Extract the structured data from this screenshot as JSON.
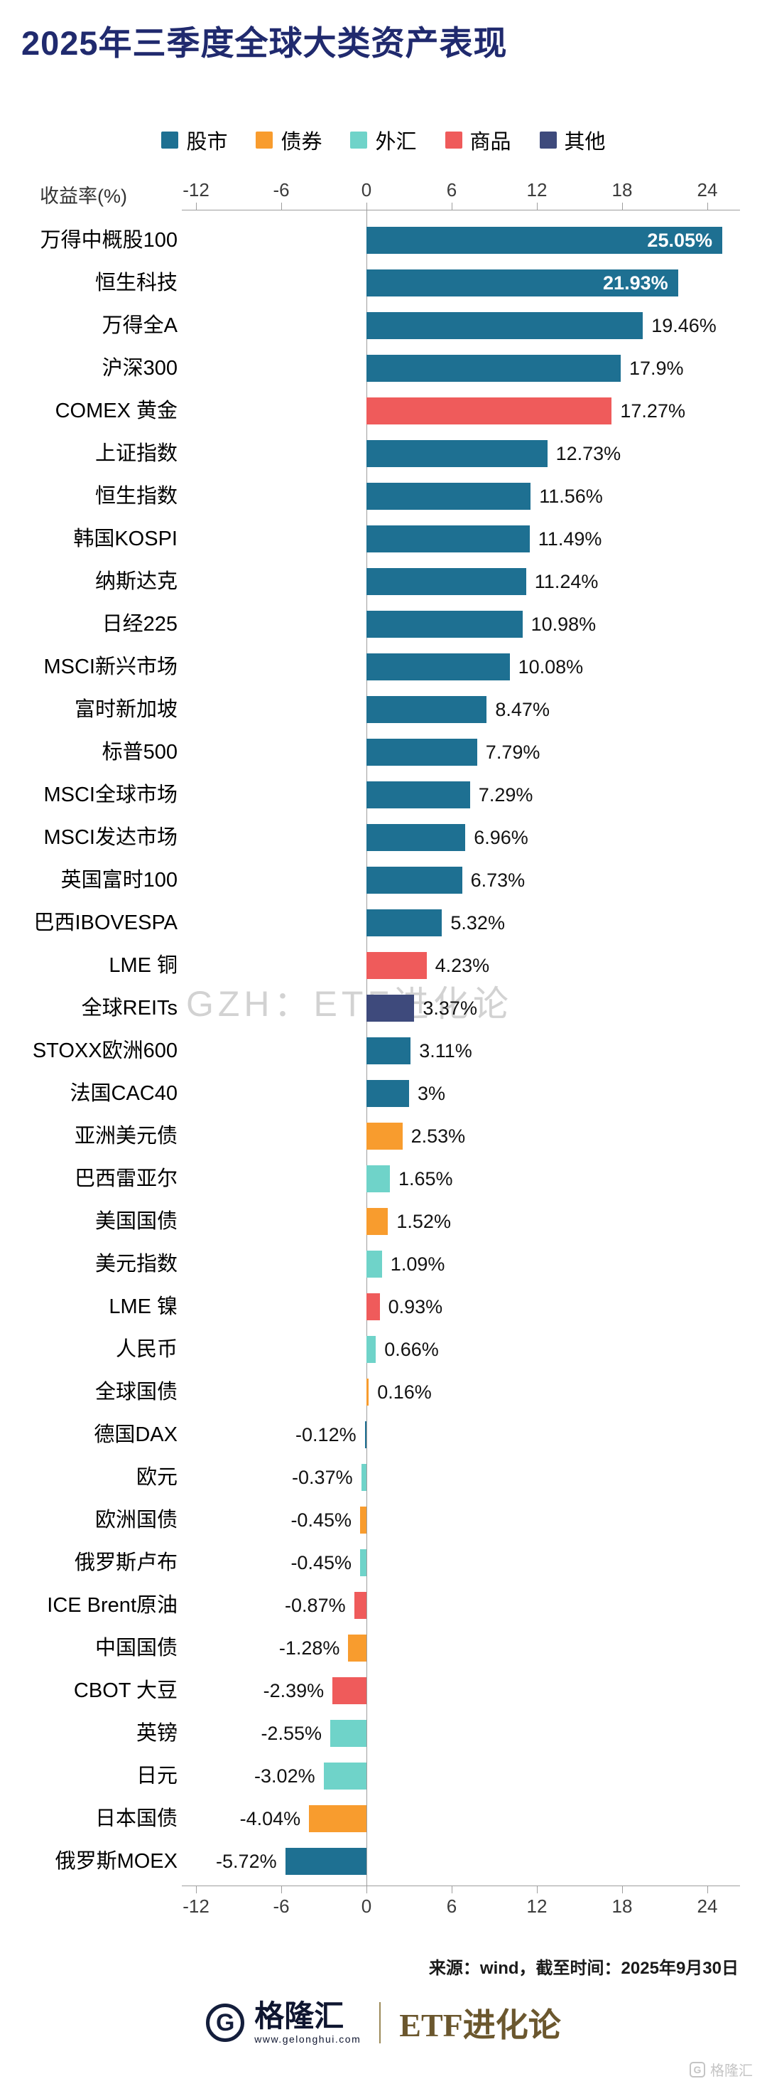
{
  "page": {
    "title": "2025年三季度全球大类资产表现",
    "watermark": "GZH：ETF进化论",
    "source_note": "来源：wind，截至时间：2025年9月30日"
  },
  "axis": {
    "label": "收益率(%)",
    "ticks": [
      -12,
      -6,
      0,
      6,
      12,
      18,
      24
    ]
  },
  "legend": [
    {
      "label": "股市",
      "type": "stock"
    },
    {
      "label": "债券",
      "type": "bond"
    },
    {
      "label": "外汇",
      "type": "forex"
    },
    {
      "label": "商品",
      "type": "commodity"
    },
    {
      "label": "其他",
      "type": "other"
    }
  ],
  "colors": {
    "stock": "#1E7092",
    "bond": "#F89C2E",
    "forex": "#6FD3C9",
    "commodity": "#EF5B5B",
    "other": "#3E4A7C",
    "title": "#202A6E",
    "watermark": "#D2D2D2"
  },
  "chart_data": {
    "type": "bar",
    "orientation": "horizontal",
    "title": "2025年三季度全球大类资产表现",
    "xlabel": "收益率(%)",
    "unit": "%",
    "xlim": [
      -13,
      26.5
    ],
    "xticks": [
      -12,
      -6,
      0,
      6,
      12,
      18,
      24
    ],
    "grid": false,
    "legend_position": "top",
    "series": [
      {
        "category": "万得中概股100",
        "value": 25.05,
        "label": "25.05%",
        "type": "stock",
        "label_inside": true
      },
      {
        "category": "恒生科技",
        "value": 21.93,
        "label": "21.93%",
        "type": "stock",
        "label_inside": true
      },
      {
        "category": "万得全A",
        "value": 19.46,
        "label": "19.46%",
        "type": "stock",
        "label_inside": false
      },
      {
        "category": "沪深300",
        "value": 17.9,
        "label": "17.9%",
        "type": "stock",
        "label_inside": false
      },
      {
        "category": "COMEX 黄金",
        "value": 17.27,
        "label": "17.27%",
        "type": "commodity",
        "label_inside": false
      },
      {
        "category": "上证指数",
        "value": 12.73,
        "label": "12.73%",
        "type": "stock",
        "label_inside": false
      },
      {
        "category": "恒生指数",
        "value": 11.56,
        "label": "11.56%",
        "type": "stock",
        "label_inside": false
      },
      {
        "category": "韩国KOSPI",
        "value": 11.49,
        "label": "11.49%",
        "type": "stock",
        "label_inside": false
      },
      {
        "category": "纳斯达克",
        "value": 11.24,
        "label": "11.24%",
        "type": "stock",
        "label_inside": false
      },
      {
        "category": "日经225",
        "value": 10.98,
        "label": "10.98%",
        "type": "stock",
        "label_inside": false
      },
      {
        "category": "MSCI新兴市场",
        "value": 10.08,
        "label": "10.08%",
        "type": "stock",
        "label_inside": false
      },
      {
        "category": "富时新加坡",
        "value": 8.47,
        "label": "8.47%",
        "type": "stock",
        "label_inside": false
      },
      {
        "category": "标普500",
        "value": 7.79,
        "label": "7.79%",
        "type": "stock",
        "label_inside": false
      },
      {
        "category": "MSCI全球市场",
        "value": 7.29,
        "label": "7.29%",
        "type": "stock",
        "label_inside": false
      },
      {
        "category": "MSCI发达市场",
        "value": 6.96,
        "label": "6.96%",
        "type": "stock",
        "label_inside": false
      },
      {
        "category": "英国富时100",
        "value": 6.73,
        "label": "6.73%",
        "type": "stock",
        "label_inside": false
      },
      {
        "category": "巴西IBOVESPA",
        "value": 5.32,
        "label": "5.32%",
        "type": "stock",
        "label_inside": false
      },
      {
        "category": "LME 铜",
        "value": 4.23,
        "label": "4.23%",
        "type": "commodity",
        "label_inside": false
      },
      {
        "category": "全球REITs",
        "value": 3.37,
        "label": "3.37%",
        "type": "other",
        "label_inside": false
      },
      {
        "category": "STOXX欧洲600",
        "value": 3.11,
        "label": "3.11%",
        "type": "stock",
        "label_inside": false
      },
      {
        "category": "法国CAC40",
        "value": 3,
        "label": "3%",
        "type": "stock",
        "label_inside": false
      },
      {
        "category": "亚洲美元债",
        "value": 2.53,
        "label": "2.53%",
        "type": "bond",
        "label_inside": false
      },
      {
        "category": "巴西雷亚尔",
        "value": 1.65,
        "label": "1.65%",
        "type": "forex",
        "label_inside": false
      },
      {
        "category": "美国国债",
        "value": 1.52,
        "label": "1.52%",
        "type": "bond",
        "label_inside": false
      },
      {
        "category": "美元指数",
        "value": 1.09,
        "label": "1.09%",
        "type": "forex",
        "label_inside": false
      },
      {
        "category": "LME 镍",
        "value": 0.93,
        "label": "0.93%",
        "type": "commodity",
        "label_inside": false
      },
      {
        "category": "人民币",
        "value": 0.66,
        "label": "0.66%",
        "type": "forex",
        "label_inside": false
      },
      {
        "category": "全球国债",
        "value": 0.16,
        "label": "0.16%",
        "type": "bond",
        "label_inside": false
      },
      {
        "category": "德国DAX",
        "value": -0.12,
        "label": "-0.12%",
        "type": "stock",
        "label_inside": false
      },
      {
        "category": "欧元",
        "value": -0.37,
        "label": "-0.37%",
        "type": "forex",
        "label_inside": false
      },
      {
        "category": "欧洲国债",
        "value": -0.45,
        "label": "-0.45%",
        "type": "bond",
        "label_inside": false
      },
      {
        "category": "俄罗斯卢布",
        "value": -0.45,
        "label": "-0.45%",
        "type": "forex",
        "label_inside": false
      },
      {
        "category": "ICE Brent原油",
        "value": -0.87,
        "label": "-0.87%",
        "type": "commodity",
        "label_inside": false
      },
      {
        "category": "中国国债",
        "value": -1.28,
        "label": "-1.28%",
        "type": "bond",
        "label_inside": false
      },
      {
        "category": "CBOT 大豆",
        "value": -2.39,
        "label": "-2.39%",
        "type": "commodity",
        "label_inside": false
      },
      {
        "category": "英镑",
        "value": -2.55,
        "label": "-2.55%",
        "type": "forex",
        "label_inside": false
      },
      {
        "category": "日元",
        "value": -3.02,
        "label": "-3.02%",
        "type": "forex",
        "label_inside": false
      },
      {
        "category": "日本国债",
        "value": -4.04,
        "label": "-4.04%",
        "type": "bond",
        "label_inside": false
      },
      {
        "category": "俄罗斯MOEX",
        "value": -5.72,
        "label": "-5.72%",
        "type": "stock",
        "label_inside": false
      }
    ]
  },
  "footer": {
    "logo_letter": "G",
    "brand": "格隆汇",
    "brand_url": "www.gelonghui.com",
    "right_text": "ETF进化论",
    "corner_watermark": "格隆汇"
  }
}
